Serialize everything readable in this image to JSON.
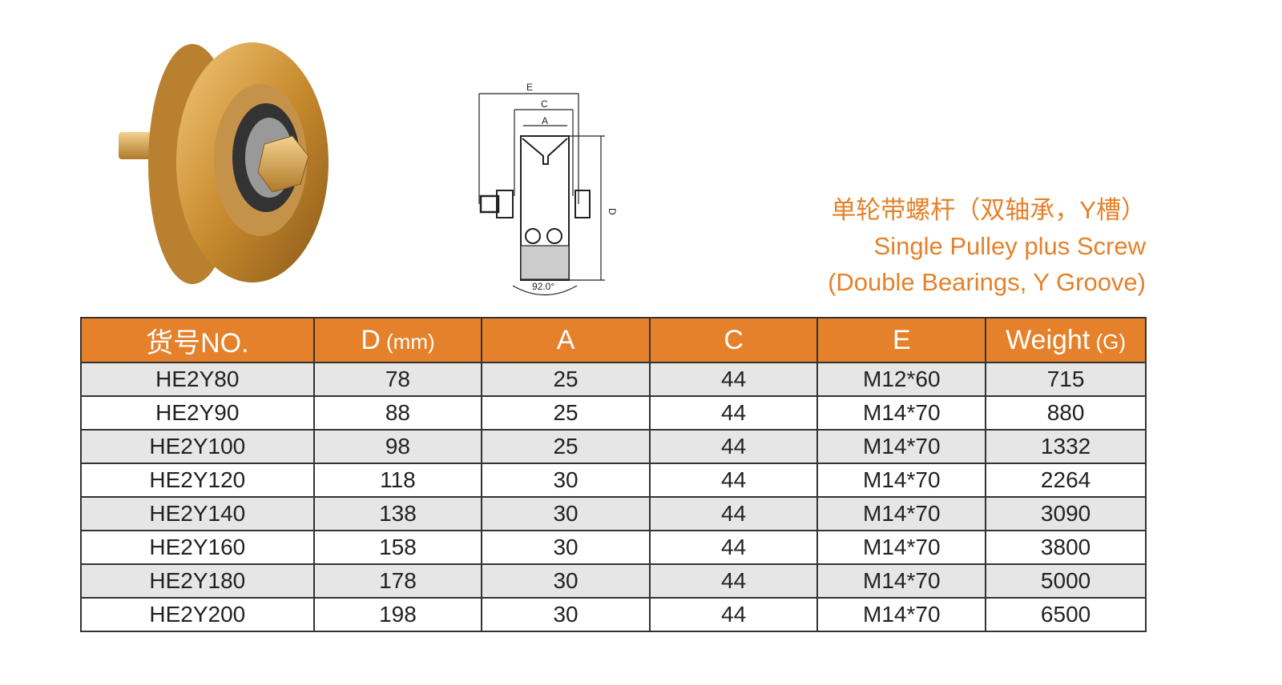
{
  "title": {
    "cn": "单轮带螺杆（双轴承，Y槽）",
    "en1": "Single Pulley plus Screw",
    "en2": "(Double Bearings, Y Groove)"
  },
  "drawing": {
    "labels": {
      "e": "E",
      "c": "C",
      "a": "A",
      "d": "D",
      "angle": "92.0°"
    }
  },
  "colors": {
    "accent": "#e5812a",
    "row_alt": "#e6e6e6"
  },
  "table": {
    "headers": [
      {
        "main": "货号NO.",
        "unit": ""
      },
      {
        "main": "D",
        "unit": " (mm)"
      },
      {
        "main": "A",
        "unit": ""
      },
      {
        "main": "C",
        "unit": ""
      },
      {
        "main": "E",
        "unit": ""
      },
      {
        "main": "Weight",
        "unit": " (G)"
      }
    ],
    "rows": [
      [
        "HE2Y80",
        "78",
        "25",
        "44",
        "M12*60",
        "715"
      ],
      [
        "HE2Y90",
        "88",
        "25",
        "44",
        "M14*70",
        "880"
      ],
      [
        "HE2Y100",
        "98",
        "25",
        "44",
        "M14*70",
        "1332"
      ],
      [
        "HE2Y120",
        "118",
        "30",
        "44",
        "M14*70",
        "2264"
      ],
      [
        "HE2Y140",
        "138",
        "30",
        "44",
        "M14*70",
        "3090"
      ],
      [
        "HE2Y160",
        "158",
        "30",
        "44",
        "M14*70",
        "3800"
      ],
      [
        "HE2Y180",
        "178",
        "30",
        "44",
        "M14*70",
        "5000"
      ],
      [
        "HE2Y200",
        "198",
        "30",
        "44",
        "M14*70",
        "6500"
      ]
    ]
  }
}
